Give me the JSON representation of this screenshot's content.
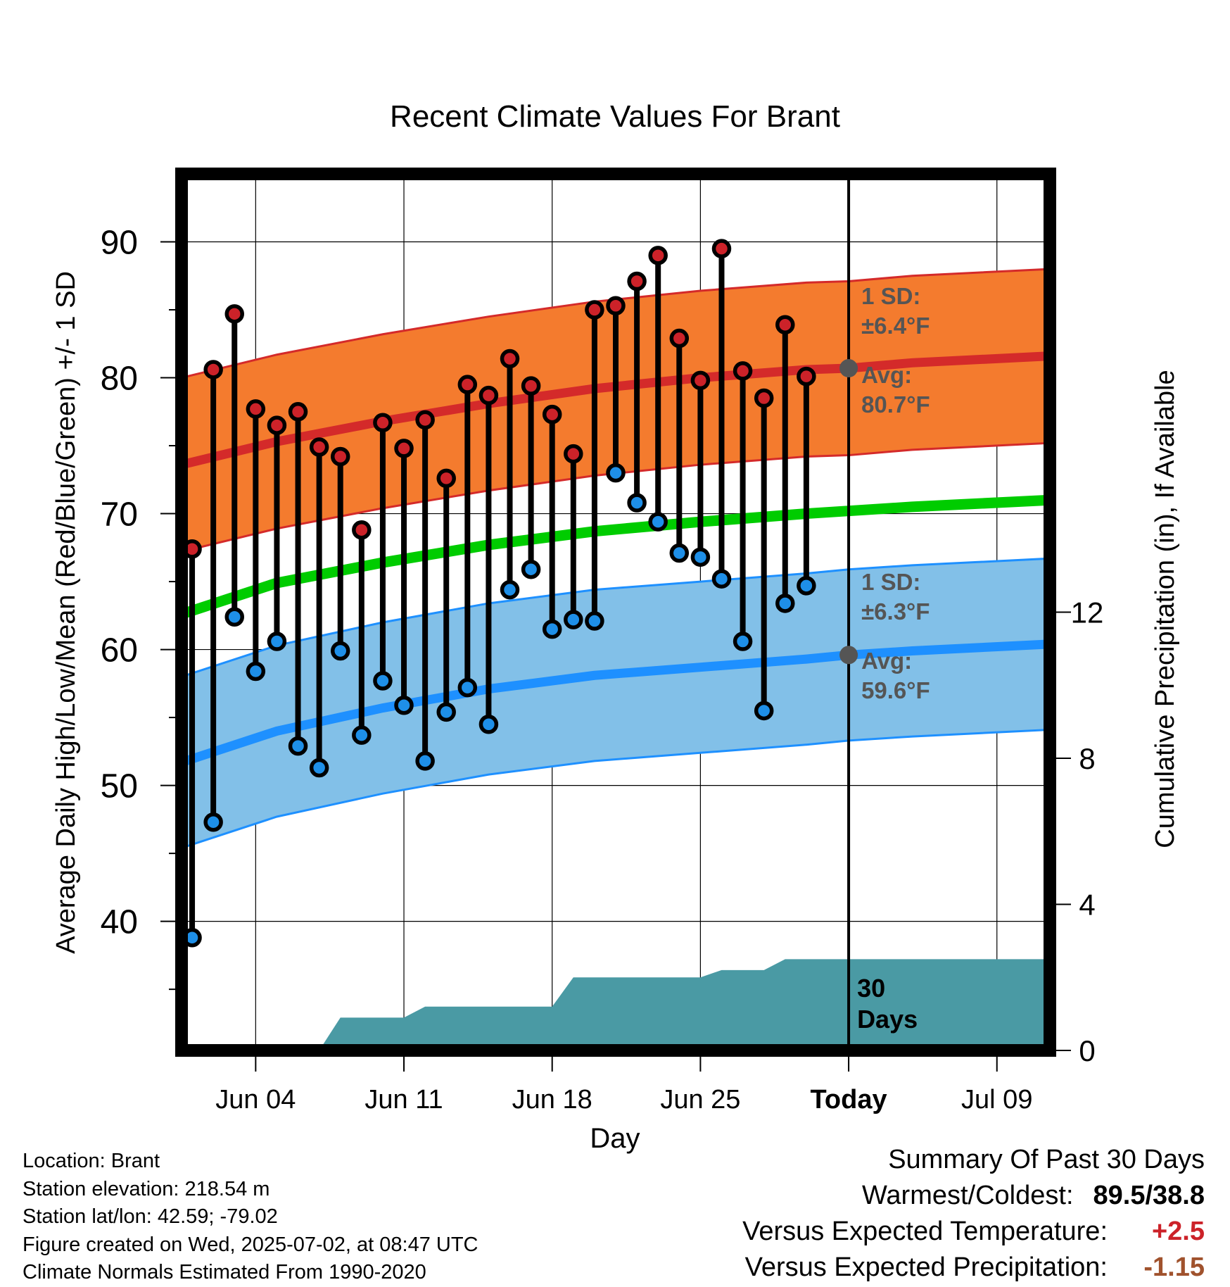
{
  "chart_data": {
    "type": "line",
    "title": "Recent Climate Values For Brant",
    "xlabel": "Day",
    "ylabel_left": "Average Daily High/Low/Mean (Red/Blue/Green) +/- 1 SD",
    "ylabel_right": "Cumulative Precipitation (in), If Available",
    "ylim_left": [
      30.5,
      95
    ],
    "yticks_left": [
      40,
      50,
      60,
      70,
      80,
      90
    ],
    "ylim_right": [
      0,
      24
    ],
    "yticks_right": [
      0,
      4,
      8,
      12
    ],
    "xlim": [
      "2025-05-31T12:00",
      "2025-07-11T12:00"
    ],
    "xticks": [
      {
        "date": "2025-06-04",
        "label": "Jun 04"
      },
      {
        "date": "2025-06-11",
        "label": "Jun 11"
      },
      {
        "date": "2025-06-18",
        "label": "Jun 18"
      },
      {
        "date": "2025-06-25",
        "label": "Jun 25"
      },
      {
        "date": "2025-07-02",
        "label": "Today"
      },
      {
        "date": "2025-07-09",
        "label": "Jul 09"
      }
    ],
    "today": "2025-07-02",
    "grid": true,
    "observations": [
      {
        "date": "2025-06-01",
        "high": 67.4,
        "low": 38.8
      },
      {
        "date": "2025-06-02",
        "high": 80.6,
        "low": 47.3
      },
      {
        "date": "2025-06-03",
        "high": 84.7,
        "low": 62.4
      },
      {
        "date": "2025-06-04",
        "high": 77.7,
        "low": 58.4
      },
      {
        "date": "2025-06-05",
        "high": 76.5,
        "low": 60.6
      },
      {
        "date": "2025-06-06",
        "high": 77.5,
        "low": 52.9
      },
      {
        "date": "2025-06-07",
        "high": 74.9,
        "low": 51.3
      },
      {
        "date": "2025-06-08",
        "high": 74.2,
        "low": 59.9
      },
      {
        "date": "2025-06-09",
        "high": 68.8,
        "low": 53.7
      },
      {
        "date": "2025-06-10",
        "high": 76.7,
        "low": 57.7
      },
      {
        "date": "2025-06-11",
        "high": 74.8,
        "low": 55.9
      },
      {
        "date": "2025-06-12",
        "high": 76.9,
        "low": 51.8
      },
      {
        "date": "2025-06-13",
        "high": 72.6,
        "low": 55.4
      },
      {
        "date": "2025-06-14",
        "high": 79.5,
        "low": 57.2
      },
      {
        "date": "2025-06-15",
        "high": 78.7,
        "low": 54.5
      },
      {
        "date": "2025-06-16",
        "high": 81.4,
        "low": 64.4
      },
      {
        "date": "2025-06-17",
        "high": 79.4,
        "low": 65.9
      },
      {
        "date": "2025-06-18",
        "high": 77.3,
        "low": 61.5
      },
      {
        "date": "2025-06-19",
        "high": 74.4,
        "low": 62.2
      },
      {
        "date": "2025-06-20",
        "high": 85.0,
        "low": 62.1
      },
      {
        "date": "2025-06-21",
        "high": 85.3,
        "low": 73.0
      },
      {
        "date": "2025-06-22",
        "high": 87.1,
        "low": 70.8
      },
      {
        "date": "2025-06-23",
        "high": 89.0,
        "low": 69.4
      },
      {
        "date": "2025-06-24",
        "high": 82.9,
        "low": 67.1
      },
      {
        "date": "2025-06-25",
        "high": 79.8,
        "low": 66.8
      },
      {
        "date": "2025-06-26",
        "high": 89.5,
        "low": 65.2
      },
      {
        "date": "2025-06-27",
        "high": 80.5,
        "low": 60.6
      },
      {
        "date": "2025-06-28",
        "high": 78.5,
        "low": 55.5
      },
      {
        "date": "2025-06-29",
        "high": 83.9,
        "low": 63.4
      },
      {
        "date": "2025-06-30",
        "high": 80.1,
        "low": 64.7
      }
    ],
    "normals": {
      "dates": [
        "2025-05-31T12:00",
        "2025-06-05",
        "2025-06-10",
        "2025-06-15",
        "2025-06-20",
        "2025-06-25",
        "2025-06-30",
        "2025-07-02",
        "2025-07-05",
        "2025-07-11T12:00"
      ],
      "high_avg": [
        73.6,
        75.3,
        76.8,
        78.1,
        79.2,
        80.0,
        80.6,
        80.7,
        81.1,
        81.6
      ],
      "high_sd": 6.4,
      "low_avg": [
        51.7,
        54.0,
        55.7,
        57.1,
        58.1,
        58.7,
        59.3,
        59.6,
        59.9,
        60.4
      ],
      "low_sd": 6.3,
      "mean_avg": [
        62.6,
        64.9,
        66.4,
        67.7,
        68.7,
        69.4,
        70.0,
        70.2,
        70.5,
        71.0
      ]
    },
    "precip_cumulative": {
      "x": [
        "2025-05-31T12:00",
        "2025-06-07",
        "2025-06-08",
        "2025-06-11",
        "2025-06-12",
        "2025-06-18",
        "2025-06-19",
        "2025-06-25",
        "2025-06-26",
        "2025-06-28",
        "2025-06-29",
        "2025-07-11T12:00"
      ],
      "y": [
        0.0,
        0.0,
        0.9,
        0.9,
        1.2,
        1.2,
        2.0,
        2.0,
        2.2,
        2.2,
        2.5,
        2.5
      ]
    },
    "annotations": {
      "high_sd_label": "1 SD:",
      "high_sd_value": "±6.4°F",
      "high_avg_label": "Avg:",
      "high_avg_value": "80.7°F",
      "low_sd_label": "1 SD:",
      "low_sd_value": "±6.3°F",
      "low_avg_label": "Avg:",
      "low_avg_value": "59.6°F",
      "days_label": "30",
      "days_label2": "Days"
    },
    "colors": {
      "high_band": "#f47b2e",
      "high_line": "#d42a2a",
      "low_band": "#82c0e8",
      "low_line": "#1e90ff",
      "mean_line": "#00cc00",
      "precip": "#4a9aa4",
      "high_marker": "#cc2229",
      "low_marker": "#1e8fe8",
      "annotation": "#555555"
    }
  },
  "footer": {
    "location": "Location: Brant",
    "elevation": "Station elevation: 218.54 m",
    "latlon": "Station lat/lon: 42.59; -79.02",
    "created": "Figure created on Wed, 2025-07-02, at 08:47 UTC",
    "normals": "Climate Normals Estimated From 1990-2020"
  },
  "summary": {
    "title": "Summary Of Past 30 Days",
    "warmest_coldest_label": "Warmest/Coldest:",
    "warmest_coldest_value": "89.5/38.8",
    "temp_label": "Versus Expected Temperature:",
    "temp_value": "+2.5",
    "temp_color": "#cc2229",
    "precip_label": "Versus Expected Precipitation:",
    "precip_value": "-1.15",
    "precip_color": "#a0522d"
  }
}
